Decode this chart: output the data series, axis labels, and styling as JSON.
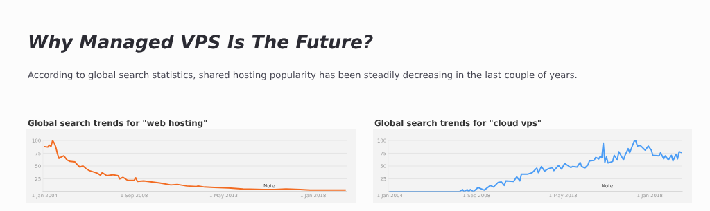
{
  "chart_data": [
    {
      "type": "other",
      "title": "Why Managed VPS Is The Future?",
      "subtitle": "According to global search statistics, shared hosting popularity has been steadily decreasing in the last couple of years."
    },
    {
      "type": "line",
      "title": "Global search trends for \"web hosting\"",
      "grid": "y",
      "line_style": "solid",
      "xlim": [
        "2003-12",
        "2019-10"
      ],
      "ylim": [
        0,
        100
      ],
      "yticks": [
        25,
        50,
        75,
        100
      ],
      "xticks": [
        {
          "value": "2004-01-01",
          "label": "1 Jan 2004"
        },
        {
          "value": "2008-09-01",
          "label": "1 Sep 2008"
        },
        {
          "value": "2013-05-01",
          "label": "1 May 2013"
        },
        {
          "value": "2018-01-01",
          "label": "1 Jan 2018"
        }
      ],
      "annotations": [
        "Note"
      ],
      "series": [
        {
          "color": "#f26b21",
          "x": [
            "2004-01",
            "2004-03",
            "2004-04",
            "2004-05",
            "2004-06",
            "2004-07",
            "2004-08",
            "2004-09",
            "2004-10",
            "2004-11",
            "2005-01",
            "2005-03",
            "2005-05",
            "2005-08",
            "2005-09",
            "2005-11",
            "2006-01",
            "2006-03",
            "2006-05",
            "2006-08",
            "2006-10",
            "2006-12",
            "2007-01",
            "2007-04",
            "2007-08",
            "2007-11",
            "2007-12",
            "2008-02",
            "2008-05",
            "2008-09",
            "2008-10",
            "2008-11",
            "2009-03",
            "2009-08",
            "2010-01",
            "2010-08",
            "2010-12",
            "2011-06",
            "2011-12",
            "2012-01",
            "2012-05",
            "2012-11",
            "2013-08",
            "2014-05",
            "2015-06",
            "2016-01",
            "2016-08",
            "2017-05",
            "2017-11",
            "2019-09"
          ],
          "values": [
            88,
            87,
            91,
            88,
            100,
            95,
            87,
            74,
            65,
            67,
            70,
            62,
            59,
            58,
            54,
            48,
            50,
            45,
            41,
            38,
            36,
            32,
            37,
            31,
            33,
            31,
            25,
            28,
            22,
            22,
            27,
            20,
            21,
            19,
            17,
            13,
            14,
            11,
            10,
            11,
            9,
            8,
            7,
            5,
            4,
            4,
            5,
            4,
            3,
            3
          ]
        }
      ]
    },
    {
      "type": "line",
      "title": "Global search trends for \"cloud vps\"",
      "grid": "y",
      "line_style": "solid",
      "xlim": [
        "2003-12",
        "2019-10"
      ],
      "ylim": [
        0,
        100
      ],
      "yticks": [
        25,
        50,
        75,
        100
      ],
      "xticks": [
        {
          "value": "2004-01-01",
          "label": "1 Jan 2004"
        },
        {
          "value": "2008-09-01",
          "label": "1 Sep 2008"
        },
        {
          "value": "2013-05-01",
          "label": "1 May 2013"
        },
        {
          "value": "2018-01-01",
          "label": "1 Jan 2018"
        }
      ],
      "annotations": [
        "Note"
      ],
      "series": [
        {
          "color": "#4a9cf5",
          "x": [
            "2004-01",
            "2007-10",
            "2007-12",
            "2008-01",
            "2008-03",
            "2008-04",
            "2008-05",
            "2008-07",
            "2008-10",
            "2009-02",
            "2009-06",
            "2009-08",
            "2009-11",
            "2010-01",
            "2010-03",
            "2010-04",
            "2010-09",
            "2010-11",
            "2011-01",
            "2011-02",
            "2011-06",
            "2011-09",
            "2011-12",
            "2012-01",
            "2012-03",
            "2012-05",
            "2012-07",
            "2012-10",
            "2012-11",
            "2013-02",
            "2013-04",
            "2013-06",
            "2013-10",
            "2013-11",
            "2014-02",
            "2014-04",
            "2014-05",
            "2014-07",
            "2014-09",
            "2014-10",
            "2015-01",
            "2015-02",
            "2015-04",
            "2015-05",
            "2015-06",
            "2015-07",
            "2015-08",
            "2015-09",
            "2015-10",
            "2016-01",
            "2016-02",
            "2016-04",
            "2016-05",
            "2016-08",
            "2016-09",
            "2016-11",
            "2016-12",
            "2017-03",
            "2017-04",
            "2017-05",
            "2017-07",
            "2017-10",
            "2017-12",
            "2018-02",
            "2018-03",
            "2018-07",
            "2018-08",
            "2018-10",
            "2018-11",
            "2019-01",
            "2019-03",
            "2019-04",
            "2019-06",
            "2019-07",
            "2019-08",
            "2019-10"
          ],
          "values": [
            0,
            0,
            4,
            0,
            4,
            0,
            4,
            0,
            8,
            3,
            12,
            9,
            18,
            19,
            12,
            21,
            20,
            29,
            21,
            34,
            34,
            37,
            46,
            37,
            49,
            40,
            44,
            47,
            41,
            51,
            44,
            55,
            47,
            49,
            48,
            57,
            49,
            46,
            52,
            60,
            61,
            67,
            64,
            69,
            66,
            95,
            57,
            68,
            56,
            59,
            71,
            62,
            78,
            62,
            71,
            84,
            76,
            99,
            99,
            89,
            90,
            81,
            89,
            81,
            71,
            70,
            76,
            64,
            70,
            62,
            71,
            60,
            73,
            64,
            78,
            76
          ]
        }
      ]
    }
  ]
}
